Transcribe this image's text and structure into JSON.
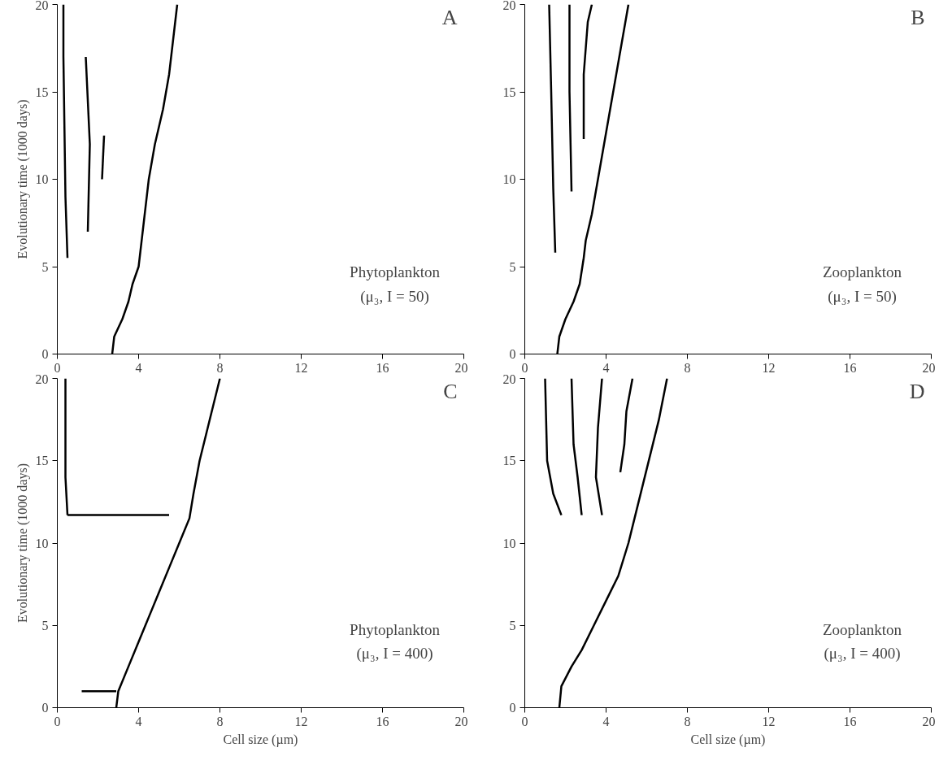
{
  "chart_data": [
    {
      "type": "line",
      "xlim": [
        0,
        20
      ],
      "ylim": [
        0,
        20
      ],
      "xticks": [
        0,
        4,
        8,
        12,
        16,
        20
      ],
      "yticks": [
        0,
        5,
        10,
        15,
        20
      ],
      "ylabel": "Evolutionary time (1000 days)",
      "annotations": [
        "A",
        "Phytoplankton",
        "(μ₃, I = 50)"
      ],
      "grid": false,
      "marker": "none",
      "series": [
        {
          "color": "#000000",
          "x": [
            2.7,
            2.8,
            3.2,
            3.5,
            3.7,
            4.0,
            4.1,
            4.3,
            4.5,
            4.8,
            5.2,
            5.5,
            5.7,
            5.9
          ],
          "values": [
            0,
            1,
            2,
            3,
            4,
            5,
            6,
            8,
            10,
            12,
            14,
            16,
            18,
            20
          ]
        },
        {
          "color": "#000000",
          "x": [
            0.5,
            0.4,
            0.3,
            0.3
          ],
          "values": [
            5.5,
            9,
            17,
            20
          ]
        },
        {
          "color": "#000000",
          "x": [
            1.5,
            1.6,
            1.4
          ],
          "values": [
            7,
            12,
            17
          ]
        },
        {
          "color": "#000000",
          "x": [
            2.2,
            2.3
          ],
          "values": [
            10,
            12.5
          ]
        }
      ]
    },
    {
      "type": "line",
      "xlim": [
        0,
        20
      ],
      "ylim": [
        0,
        20
      ],
      "xticks": [
        0,
        4,
        8,
        12,
        16,
        20
      ],
      "yticks": [
        0,
        5,
        10,
        15,
        20
      ],
      "annotations": [
        "B",
        "Zooplankton",
        "(μ₃, I = 50)"
      ],
      "grid": false,
      "marker": "none",
      "series": [
        {
          "color": "#000000",
          "x": [
            1.6,
            1.7,
            2.0,
            2.4,
            2.7,
            2.9,
            3.0,
            3.3,
            3.6,
            3.9,
            4.2,
            4.5,
            4.8,
            5.1
          ],
          "values": [
            0,
            1,
            2,
            3,
            4,
            5.5,
            6.5,
            8,
            10,
            12,
            14,
            16,
            18,
            20
          ]
        },
        {
          "color": "#000000",
          "x": [
            1.5,
            1.4,
            1.3,
            1.2
          ],
          "values": [
            5.8,
            9.5,
            15,
            20
          ]
        },
        {
          "color": "#000000",
          "x": [
            2.3,
            2.2,
            2.2
          ],
          "values": [
            9.3,
            15,
            20
          ]
        },
        {
          "color": "#000000",
          "x": [
            2.9,
            2.9,
            3.1,
            3.3
          ],
          "values": [
            12.3,
            16,
            19,
            20
          ]
        }
      ]
    },
    {
      "type": "line",
      "xlim": [
        0,
        20
      ],
      "ylim": [
        0,
        20
      ],
      "xticks": [
        0,
        4,
        8,
        12,
        16,
        20
      ],
      "yticks": [
        0,
        5,
        10,
        15,
        20
      ],
      "xlabel": "Cell size (µm)",
      "ylabel": "Evolutionary time (1000 days)",
      "annotations": [
        "C",
        "Phytoplankton",
        "(μ₃, I = 400)"
      ],
      "grid": false,
      "marker": "none",
      "series": [
        {
          "color": "#000000",
          "x": [
            2.9,
            3.0,
            3.5,
            4.0,
            4.5,
            5.0,
            5.5,
            6.0,
            6.5,
            6.7,
            7.0,
            7.4,
            7.8,
            8.0
          ],
          "values": [
            0,
            1,
            2.5,
            4,
            5.5,
            7,
            8.5,
            10,
            11.5,
            13,
            15,
            17,
            19,
            20
          ]
        },
        {
          "color": "#000000",
          "x": [
            1.2,
            2.9
          ],
          "values": [
            1,
            1
          ]
        },
        {
          "color": "#000000",
          "x": [
            0.5,
            0.4,
            0.4
          ],
          "values": [
            11.7,
            14,
            20
          ]
        },
        {
          "color": "#000000",
          "x": [
            0.5,
            5.5
          ],
          "values": [
            11.7,
            11.7
          ]
        }
      ]
    },
    {
      "type": "line",
      "xlim": [
        0,
        20
      ],
      "ylim": [
        0,
        20
      ],
      "xticks": [
        0,
        4,
        8,
        12,
        16,
        20
      ],
      "yticks": [
        0,
        5,
        10,
        15,
        20
      ],
      "xlabel": "Cell size (µm)",
      "annotations": [
        "D",
        "Zooplankton",
        "(μ₃, I = 400)"
      ],
      "grid": false,
      "marker": "none",
      "series": [
        {
          "color": "#000000",
          "x": [
            1.7,
            1.8,
            2.3,
            2.8,
            3.4,
            4.0,
            4.6,
            5.1,
            5.4,
            5.8,
            6.2,
            6.6,
            7.0
          ],
          "values": [
            0,
            1.3,
            2.5,
            3.5,
            5,
            6.5,
            8,
            10,
            11.5,
            13.5,
            15.5,
            17.5,
            20
          ]
        },
        {
          "color": "#000000",
          "x": [
            1.8,
            1.4,
            1.1,
            1.0
          ],
          "values": [
            11.7,
            13,
            15,
            20
          ]
        },
        {
          "color": "#000000",
          "x": [
            2.8,
            2.6,
            2.4,
            2.3
          ],
          "values": [
            11.7,
            14,
            16,
            20
          ]
        },
        {
          "color": "#000000",
          "x": [
            3.8,
            3.5,
            3.6,
            3.8
          ],
          "values": [
            11.7,
            14,
            17,
            20
          ]
        },
        {
          "color": "#000000",
          "x": [
            4.7,
            4.9,
            5.0,
            5.3
          ],
          "values": [
            14.3,
            16,
            18,
            20
          ]
        }
      ]
    }
  ]
}
